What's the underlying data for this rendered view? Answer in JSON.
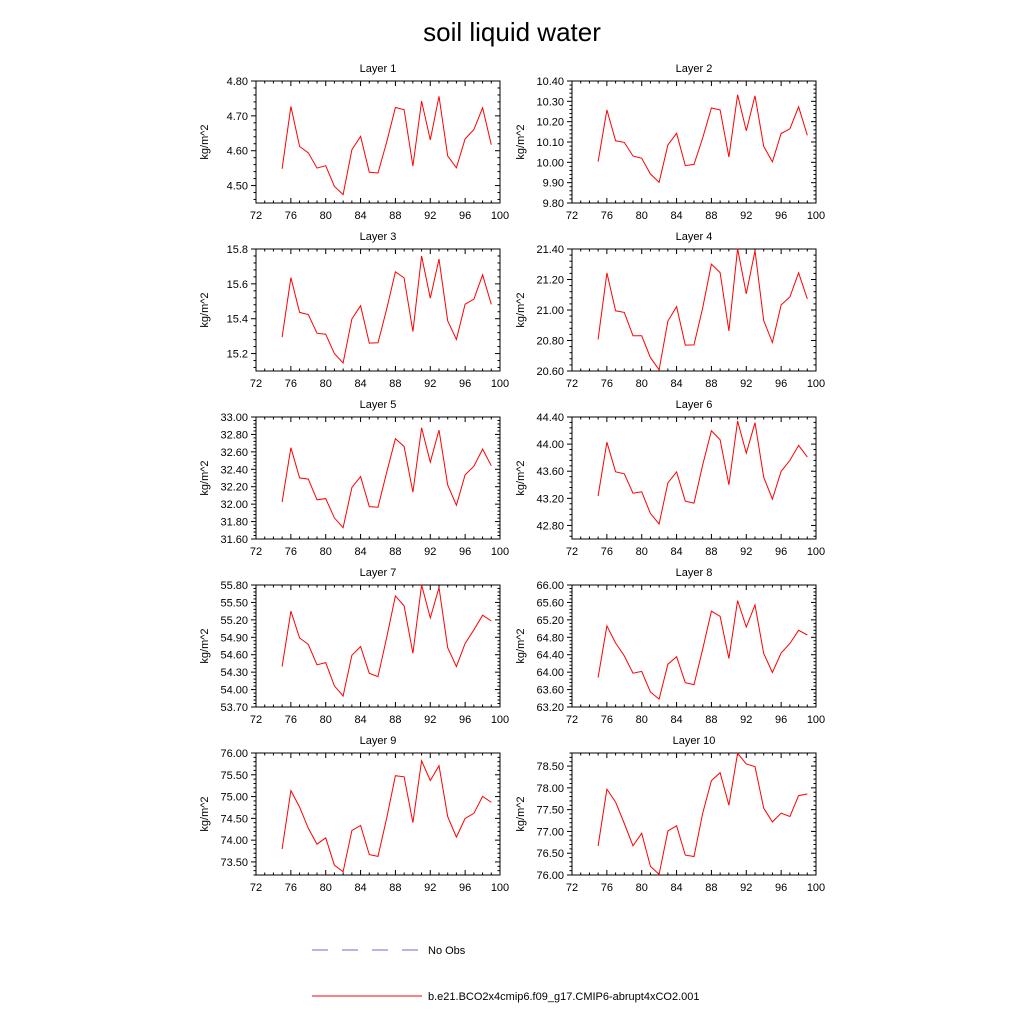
{
  "figure": {
    "title": "soil liquid water",
    "legend": [
      {
        "label": "No Obs",
        "style": "dashed",
        "color": "#6b6bd6"
      },
      {
        "label": "b.e21.BCO2x4cmip6.f09_g17.CMIP6-abrupt4xCO2.001",
        "style": "solid",
        "color": "#ff0000"
      }
    ]
  },
  "chart_data": [
    {
      "type": "line",
      "title": "Layer 1",
      "ylabel": "kg/m^2",
      "xlabel": "",
      "xlim": [
        72,
        100
      ],
      "ylim": [
        4.45,
        4.8
      ],
      "xticks": [
        72,
        76,
        80,
        84,
        88,
        92,
        96,
        100
      ],
      "xtick_labels": [
        "72",
        "76",
        "80",
        "84",
        "88",
        "92",
        "96",
        "100"
      ],
      "yticks": [
        4.5,
        4.6,
        4.7,
        4.8
      ],
      "ytick_labels": [
        "4.50",
        "4.60",
        "4.70",
        "4.80"
      ],
      "series": [
        {
          "color": "#ff0000",
          "x": [
            75,
            76,
            77,
            78,
            79,
            80,
            81,
            82,
            83,
            84,
            85,
            86,
            87,
            88,
            89,
            90,
            91,
            92,
            93,
            94,
            95,
            96,
            97,
            98,
            99
          ],
          "y": [
            4.548,
            4.727,
            4.612,
            4.594,
            4.55,
            4.557,
            4.498,
            4.474,
            4.603,
            4.641,
            4.538,
            4.536,
            4.625,
            4.724,
            4.718,
            4.556,
            4.742,
            4.631,
            4.756,
            4.585,
            4.551,
            4.634,
            4.661,
            4.723,
            4.617
          ]
        }
      ]
    },
    {
      "type": "line",
      "title": "Layer 2",
      "ylabel": "kg/m^2",
      "xlabel": "",
      "xlim": [
        72,
        100
      ],
      "ylim": [
        9.8,
        10.4
      ],
      "xticks": [
        72,
        76,
        80,
        84,
        88,
        92,
        96,
        100
      ],
      "xtick_labels": [
        "72",
        "76",
        "80",
        "84",
        "88",
        "92",
        "96",
        "100"
      ],
      "yticks": [
        9.8,
        9.9,
        10.0,
        10.1,
        10.2,
        10.3,
        10.4
      ],
      "ytick_labels": [
        "9.80",
        "9.90",
        "10.00",
        "10.10",
        "10.20",
        "10.30",
        "10.40"
      ],
      "series": [
        {
          "color": "#ff0000",
          "x": [
            75,
            76,
            77,
            78,
            79,
            80,
            81,
            82,
            83,
            84,
            85,
            86,
            87,
            88,
            89,
            90,
            91,
            92,
            93,
            94,
            95,
            96,
            97,
            98,
            99
          ],
          "y": [
            10.003,
            10.258,
            10.106,
            10.098,
            10.031,
            10.02,
            9.943,
            9.902,
            10.085,
            10.143,
            9.984,
            9.99,
            10.12,
            10.267,
            10.258,
            10.026,
            10.332,
            10.155,
            10.327,
            10.079,
            10.002,
            10.142,
            10.165,
            10.273,
            10.133
          ]
        }
      ]
    },
    {
      "type": "line",
      "title": "Layer 3",
      "ylabel": "kg/m^2",
      "xlabel": "",
      "xlim": [
        72,
        100
      ],
      "ylim": [
        15.1,
        15.8
      ],
      "xticks": [
        72,
        76,
        80,
        84,
        88,
        92,
        96,
        100
      ],
      "xtick_labels": [
        "72",
        "76",
        "80",
        "84",
        "88",
        "92",
        "96",
        "100"
      ],
      "yticks": [
        15.2,
        15.4,
        15.6,
        15.8
      ],
      "ytick_labels": [
        "15.2",
        "15.4",
        "15.6",
        "15.8"
      ],
      "series": [
        {
          "color": "#ff0000",
          "x": [
            75,
            76,
            77,
            78,
            79,
            80,
            81,
            82,
            83,
            84,
            85,
            86,
            87,
            88,
            89,
            90,
            91,
            92,
            93,
            94,
            95,
            96,
            97,
            98,
            99
          ],
          "y": [
            15.294,
            15.636,
            15.436,
            15.424,
            15.317,
            15.311,
            15.2,
            15.146,
            15.399,
            15.474,
            15.26,
            15.262,
            15.456,
            15.669,
            15.634,
            15.326,
            15.76,
            15.518,
            15.742,
            15.388,
            15.281,
            15.483,
            15.512,
            15.652,
            15.482
          ]
        }
      ]
    },
    {
      "type": "line",
      "title": "Layer 4",
      "ylabel": "kg/m^2",
      "xlabel": "",
      "xlim": [
        72,
        100
      ],
      "ylim": [
        20.6,
        21.4
      ],
      "xticks": [
        72,
        76,
        80,
        84,
        88,
        92,
        96,
        100
      ],
      "xtick_labels": [
        "72",
        "76",
        "80",
        "84",
        "88",
        "92",
        "96",
        "100"
      ],
      "yticks": [
        20.6,
        20.8,
        21.0,
        21.2,
        21.4
      ],
      "ytick_labels": [
        "20.60",
        "20.80",
        "21.00",
        "21.20",
        "21.40"
      ],
      "series": [
        {
          "color": "#ff0000",
          "x": [
            75,
            76,
            77,
            78,
            79,
            80,
            81,
            82,
            83,
            84,
            85,
            86,
            87,
            88,
            89,
            90,
            91,
            92,
            93,
            94,
            95,
            96,
            97,
            98,
            99
          ],
          "y": [
            20.807,
            21.243,
            20.995,
            20.984,
            20.831,
            20.831,
            20.688,
            20.608,
            20.928,
            21.022,
            20.77,
            20.771,
            21.014,
            21.301,
            21.245,
            20.863,
            21.402,
            21.106,
            21.389,
            20.931,
            20.787,
            21.033,
            21.086,
            21.244,
            21.073
          ]
        }
      ]
    },
    {
      "type": "line",
      "title": "Layer 5",
      "ylabel": "kg/m^2",
      "xlabel": "",
      "xlim": [
        72,
        100
      ],
      "ylim": [
        31.6,
        33.0
      ],
      "xticks": [
        72,
        76,
        80,
        84,
        88,
        92,
        96,
        100
      ],
      "xtick_labels": [
        "72",
        "76",
        "80",
        "84",
        "88",
        "92",
        "96",
        "100"
      ],
      "yticks": [
        31.6,
        31.8,
        32.0,
        32.2,
        32.4,
        32.6,
        32.8,
        33.0
      ],
      "ytick_labels": [
        "31.60",
        "31.80",
        "32.00",
        "32.20",
        "32.40",
        "32.60",
        "32.80",
        "33.00"
      ],
      "series": [
        {
          "color": "#ff0000",
          "x": [
            75,
            76,
            77,
            78,
            79,
            80,
            81,
            82,
            83,
            84,
            85,
            86,
            87,
            88,
            89,
            90,
            91,
            92,
            93,
            94,
            95,
            96,
            97,
            98,
            99
          ],
          "y": [
            32.025,
            32.648,
            32.301,
            32.287,
            32.05,
            32.064,
            31.842,
            31.73,
            32.191,
            32.316,
            31.972,
            31.965,
            32.366,
            32.751,
            32.661,
            32.137,
            32.876,
            32.483,
            32.85,
            32.22,
            31.987,
            32.335,
            32.435,
            32.632,
            32.441
          ]
        }
      ]
    },
    {
      "type": "line",
      "title": "Layer 6",
      "ylabel": "kg/m^2",
      "xlabel": "",
      "xlim": [
        72,
        100
      ],
      "ylim": [
        42.6,
        44.4
      ],
      "xticks": [
        72,
        76,
        80,
        84,
        88,
        92,
        96,
        100
      ],
      "xtick_labels": [
        "72",
        "76",
        "80",
        "84",
        "88",
        "92",
        "96",
        "100"
      ],
      "yticks": [
        42.8,
        43.2,
        43.6,
        44.0,
        44.4
      ],
      "ytick_labels": [
        "42.80",
        "43.20",
        "43.60",
        "44.00",
        "44.40"
      ],
      "series": [
        {
          "color": "#ff0000",
          "x": [
            75,
            76,
            77,
            78,
            79,
            80,
            81,
            82,
            83,
            84,
            85,
            86,
            87,
            88,
            89,
            90,
            91,
            92,
            93,
            94,
            95,
            96,
            97,
            98,
            99
          ],
          "y": [
            43.234,
            44.028,
            43.591,
            43.562,
            43.276,
            43.297,
            42.977,
            42.822,
            43.429,
            43.59,
            43.158,
            43.13,
            43.694,
            44.196,
            44.063,
            43.4,
            44.339,
            43.867,
            44.316,
            43.512,
            43.189,
            43.598,
            43.76,
            43.981,
            43.812
          ]
        }
      ]
    },
    {
      "type": "line",
      "title": "Layer 7",
      "ylabel": "kg/m^2",
      "xlabel": "",
      "xlim": [
        72,
        100
      ],
      "ylim": [
        53.7,
        55.8
      ],
      "xticks": [
        72,
        76,
        80,
        84,
        88,
        92,
        96,
        100
      ],
      "xtick_labels": [
        "72",
        "76",
        "80",
        "84",
        "88",
        "92",
        "96",
        "100"
      ],
      "yticks": [
        53.7,
        54.0,
        54.3,
        54.6,
        54.9,
        55.2,
        55.5,
        55.8
      ],
      "ytick_labels": [
        "53.70",
        "54.00",
        "54.30",
        "54.60",
        "54.90",
        "55.20",
        "55.50",
        "55.80"
      ],
      "series": [
        {
          "color": "#ff0000",
          "x": [
            75,
            76,
            77,
            78,
            79,
            80,
            81,
            82,
            83,
            84,
            85,
            86,
            87,
            88,
            89,
            90,
            91,
            92,
            93,
            94,
            95,
            96,
            97,
            98,
            99
          ],
          "y": [
            54.396,
            55.349,
            54.888,
            54.777,
            54.426,
            54.464,
            54.063,
            53.89,
            54.591,
            54.74,
            54.279,
            54.223,
            54.896,
            55.612,
            55.44,
            54.625,
            55.801,
            55.233,
            55.755,
            54.72,
            54.396,
            54.793,
            55.028,
            55.28,
            55.181
          ]
        }
      ]
    },
    {
      "type": "line",
      "title": "Layer 8",
      "ylabel": "kg/m^2",
      "xlabel": "",
      "xlim": [
        72,
        100
      ],
      "ylim": [
        63.2,
        66.0
      ],
      "xticks": [
        72,
        76,
        80,
        84,
        88,
        92,
        96,
        100
      ],
      "xtick_labels": [
        "72",
        "76",
        "80",
        "84",
        "88",
        "92",
        "96",
        "100"
      ],
      "yticks": [
        63.2,
        63.6,
        64.0,
        64.4,
        64.8,
        65.2,
        65.6,
        66.0
      ],
      "ytick_labels": [
        "63.20",
        "63.60",
        "64.00",
        "64.40",
        "64.80",
        "65.20",
        "65.60",
        "66.00"
      ],
      "series": [
        {
          "color": "#ff0000",
          "x": [
            75,
            76,
            77,
            78,
            79,
            80,
            81,
            82,
            83,
            84,
            85,
            86,
            87,
            88,
            89,
            90,
            91,
            92,
            93,
            94,
            95,
            96,
            97,
            98,
            99
          ],
          "y": [
            63.878,
            65.062,
            64.669,
            64.372,
            63.975,
            64.017,
            63.544,
            63.382,
            64.183,
            64.355,
            63.758,
            63.715,
            64.528,
            65.399,
            65.281,
            64.312,
            65.642,
            65.035,
            65.544,
            64.429,
            63.992,
            64.439,
            64.657,
            64.96,
            64.852
          ]
        }
      ]
    },
    {
      "type": "line",
      "title": "Layer 9",
      "ylabel": "kg/m^2",
      "xlabel": "",
      "xlim": [
        72,
        100
      ],
      "ylim": [
        73.2,
        76.0
      ],
      "xticks": [
        72,
        76,
        80,
        84,
        88,
        92,
        96,
        100
      ],
      "xtick_labels": [
        "72",
        "76",
        "80",
        "84",
        "88",
        "92",
        "96",
        "100"
      ],
      "yticks": [
        73.5,
        74.0,
        74.5,
        75.0,
        75.5,
        76.0
      ],
      "ytick_labels": [
        "73.50",
        "74.00",
        "74.50",
        "75.00",
        "75.50",
        "76.00"
      ],
      "series": [
        {
          "color": "#ff0000",
          "x": [
            75,
            76,
            77,
            78,
            79,
            80,
            81,
            82,
            83,
            84,
            85,
            86,
            87,
            88,
            89,
            90,
            91,
            92,
            93,
            94,
            95,
            96,
            97,
            98,
            99
          ],
          "y": [
            73.795,
            75.137,
            74.758,
            74.271,
            73.908,
            74.054,
            73.426,
            73.273,
            74.224,
            74.336,
            73.668,
            73.627,
            74.505,
            75.478,
            75.454,
            74.402,
            75.822,
            75.368,
            75.708,
            74.541,
            74.07,
            74.496,
            74.617,
            75.003,
            74.866
          ]
        }
      ]
    },
    {
      "type": "line",
      "title": "Layer 10",
      "ylabel": "kg/m^2",
      "xlabel": "",
      "xlim": [
        72,
        100
      ],
      "ylim": [
        76.0,
        78.8
      ],
      "xticks": [
        72,
        76,
        80,
        84,
        88,
        92,
        96,
        100
      ],
      "xtick_labels": [
        "72",
        "76",
        "80",
        "84",
        "88",
        "92",
        "96",
        "100"
      ],
      "yticks": [
        76.0,
        76.5,
        77.0,
        77.5,
        78.0,
        78.5
      ],
      "ytick_labels": [
        "76.00",
        "76.50",
        "77.00",
        "77.50",
        "78.00",
        "78.50"
      ],
      "series": [
        {
          "color": "#ff0000",
          "x": [
            75,
            76,
            77,
            78,
            79,
            80,
            81,
            82,
            83,
            84,
            85,
            86,
            87,
            88,
            89,
            90,
            91,
            92,
            93,
            94,
            95,
            96,
            97,
            98,
            99
          ],
          "y": [
            76.665,
            77.97,
            77.674,
            77.183,
            76.67,
            76.958,
            76.202,
            76.013,
            77.01,
            77.13,
            76.456,
            76.424,
            77.419,
            78.166,
            78.348,
            77.603,
            78.793,
            78.547,
            78.489,
            77.534,
            77.219,
            77.418,
            77.342,
            77.822,
            77.858
          ]
        }
      ]
    }
  ]
}
